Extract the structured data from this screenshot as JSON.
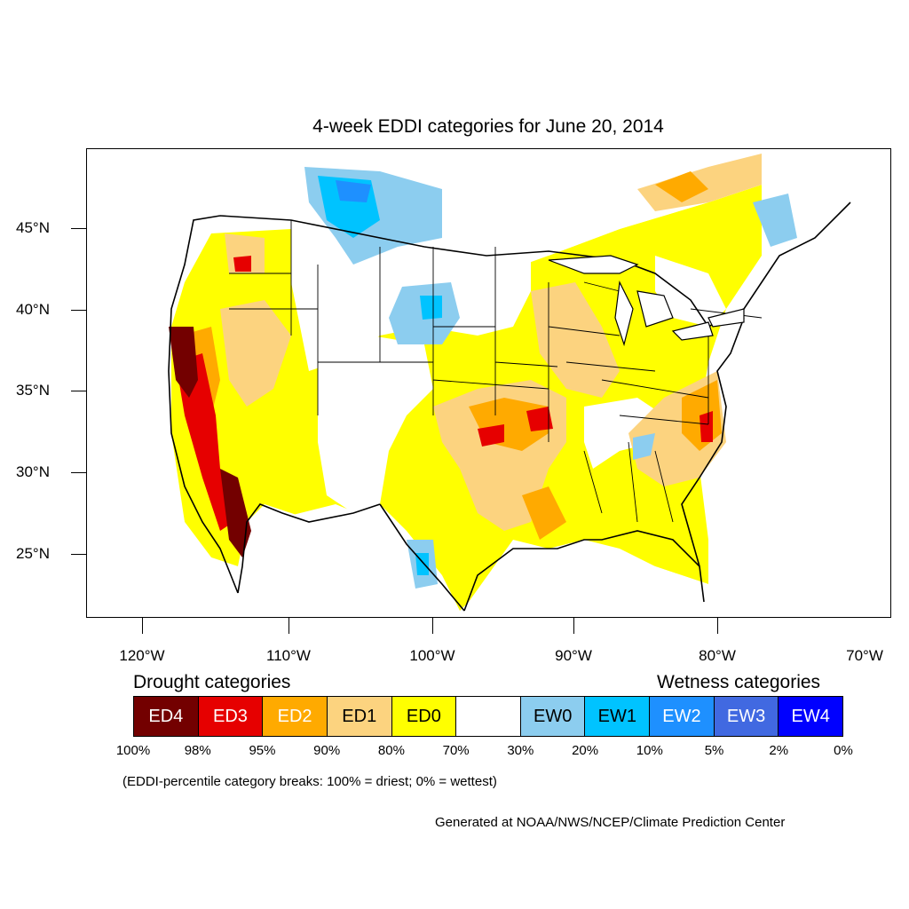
{
  "title": "4-week EDDI categories for June 20, 2014",
  "lat_labels": [
    "45°N",
    "40°N",
    "35°N",
    "30°N",
    "25°N"
  ],
  "lon_labels": [
    "120°W",
    "110°W",
    "100°W",
    "90°W",
    "80°W",
    "70°W"
  ],
  "drought_title": "Drought categories",
  "wetness_title": "Wetness categories",
  "legend": [
    {
      "label": "ED4",
      "color": "#730000",
      "text_color": "#ffffff"
    },
    {
      "label": "ED3",
      "color": "#e60000",
      "text_color": "#ffffff"
    },
    {
      "label": "ED2",
      "color": "#ffaa00",
      "text_color": "#ffffff"
    },
    {
      "label": "ED1",
      "color": "#fcd37f",
      "text_color": "#000000"
    },
    {
      "label": "ED0",
      "color": "#ffff00",
      "text_color": "#000000"
    },
    {
      "label": "",
      "color": "#ffffff",
      "text_color": "#000000"
    },
    {
      "label": "EW0",
      "color": "#8ccdef",
      "text_color": "#000000"
    },
    {
      "label": "EW1",
      "color": "#00c3ff",
      "text_color": "#000000"
    },
    {
      "label": "EW2",
      "color": "#1e90ff",
      "text_color": "#ffffff"
    },
    {
      "label": "EW3",
      "color": "#4169e1",
      "text_color": "#ffffff"
    },
    {
      "label": "EW4",
      "color": "#0000ff",
      "text_color": "#ffffff"
    }
  ],
  "breaks": [
    "100%",
    "98%",
    "95%",
    "90%",
    "80%",
    "70%",
    "30%",
    "20%",
    "10%",
    "5%",
    "2%",
    "0%"
  ],
  "note": "(EDDI-percentile category breaks: 100% = driest; 0% = wettest)",
  "credit": "Generated at NOAA/NWS/NCEP/Climate Prediction Center"
}
